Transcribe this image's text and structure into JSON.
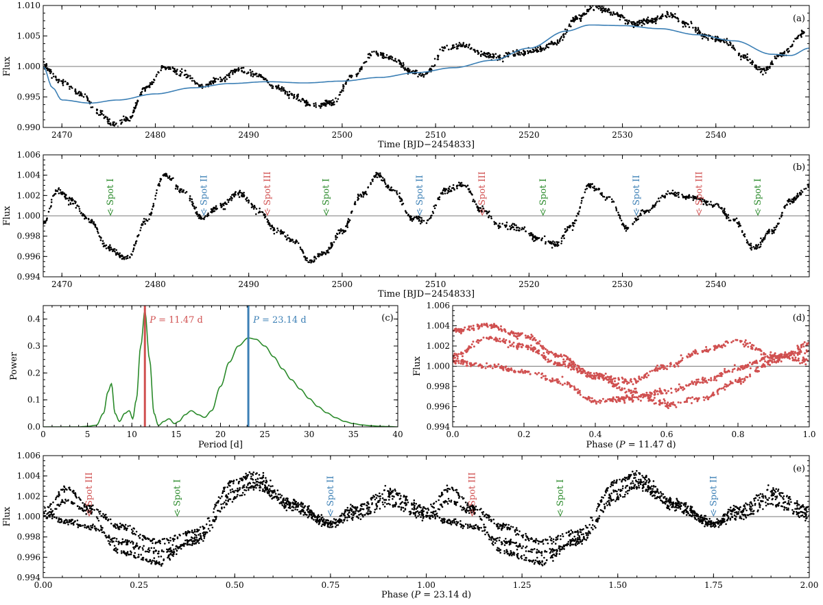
{
  "figure": {
    "description_panels": [
      "a",
      "b",
      "c",
      "d",
      "e"
    ]
  },
  "chart_data": [
    {
      "panel": "(a)",
      "type": "scatter",
      "xlabel": "Time [BJD−2454833]",
      "ylabel": "Flux",
      "xlim": [
        2468,
        2550
      ],
      "ylim": [
        0.99,
        1.01
      ],
      "xticks": [
        2470,
        2480,
        2490,
        2500,
        2510,
        2520,
        2530,
        2540
      ],
      "xtick_labels": [
        "2470",
        "2480",
        "2490",
        "2500",
        "2510",
        "2520",
        "2530",
        "2540"
      ],
      "yticks": [
        0.99,
        0.995,
        1.0,
        1.005,
        1.01
      ],
      "ytick_labels": [
        "0.990",
        "0.995",
        "1.000",
        "1.005",
        "1.010"
      ],
      "reference_line": 1.0,
      "series": [
        {
          "name": "data",
          "color": "#000000",
          "style": "dots",
          "x": [
            2468.0,
            2470.0,
            2472.0,
            2474.0,
            2475.5,
            2477.0,
            2479.0,
            2481.0,
            2483.0,
            2485.0,
            2487.0,
            2489.0,
            2491.0,
            2493.0,
            2495.0,
            2497.0,
            2499.0,
            2501.0,
            2503.5,
            2505.5,
            2507.5,
            2509.0,
            2511.0,
            2513.0,
            2515.0,
            2517.0,
            2519.0,
            2521.0,
            2523.0,
            2525.0,
            2527.0,
            2529.0,
            2531.0,
            2533.0,
            2535.0,
            2537.0,
            2539.0,
            2541.0,
            2543.0,
            2545.0,
            2547.0,
            2549.5
          ],
          "y": [
            1.0001,
            0.9975,
            0.9955,
            0.9925,
            0.9905,
            0.9912,
            0.9965,
            0.9999,
            0.9988,
            0.9968,
            0.9978,
            0.9995,
            0.9985,
            0.9965,
            0.995,
            0.9935,
            0.994,
            0.9982,
            1.0022,
            1.0012,
            0.999,
            0.9988,
            1.003,
            1.0035,
            1.002,
            1.0015,
            1.0022,
            1.0028,
            1.004,
            1.0078,
            1.0098,
            1.0088,
            1.007,
            1.0075,
            1.0085,
            1.0068,
            1.005,
            1.0042,
            1.0015,
            0.9993,
            1.002,
            1.0055
          ]
        },
        {
          "name": "model",
          "color": "#3b7fb5",
          "style": "line",
          "x": [
            2468.0,
            2469.0,
            2470.0,
            2473.0,
            2476.0,
            2480.0,
            2484.0,
            2488.0,
            2492.0,
            2496.0,
            2500.0,
            2504.0,
            2508.0,
            2512.0,
            2516.0,
            2520.0,
            2524.0,
            2526.5,
            2530.0,
            2534.0,
            2538.0,
            2542.0,
            2546.0,
            2548.0,
            2550.0
          ],
          "y": [
            1.0,
            0.9965,
            0.9945,
            0.994,
            0.9945,
            0.9955,
            0.9965,
            0.9972,
            0.9975,
            0.9973,
            0.9976,
            0.9982,
            0.999,
            0.9998,
            1.001,
            1.003,
            1.0058,
            1.0068,
            1.0067,
            1.0062,
            1.0052,
            1.0042,
            1.002,
            1.0018,
            1.003
          ]
        }
      ]
    },
    {
      "panel": "(b)",
      "type": "scatter",
      "xlabel": "Time [BJD−2454833]",
      "ylabel": "Flux",
      "xlim": [
        2468,
        2550
      ],
      "ylim": [
        0.994,
        1.006
      ],
      "xticks": [
        2470,
        2480,
        2490,
        2500,
        2510,
        2520,
        2530,
        2540
      ],
      "xtick_labels": [
        "2470",
        "2480",
        "2490",
        "2500",
        "2510",
        "2520",
        "2530",
        "2540"
      ],
      "yticks": [
        0.994,
        0.996,
        0.998,
        1.0,
        1.002,
        1.004,
        1.006
      ],
      "ytick_labels": [
        "0.994",
        "0.996",
        "0.998",
        "1.000",
        "1.002",
        "1.004",
        "1.006"
      ],
      "reference_line": 1.0,
      "series": [
        {
          "name": "detrended",
          "color": "#000000",
          "style": "dots",
          "x": [
            2468.0,
            2469.5,
            2471.0,
            2473.0,
            2475.0,
            2477.0,
            2479.0,
            2481.0,
            2483.0,
            2485.0,
            2487.0,
            2489.0,
            2491.0,
            2493.0,
            2495.0,
            2496.5,
            2498.0,
            2500.0,
            2502.0,
            2503.8,
            2505.5,
            2507.5,
            2509.0,
            2511.0,
            2513.0,
            2515.0,
            2517.0,
            2519.0,
            2521.0,
            2523.0,
            2524.5,
            2526.5,
            2528.5,
            2530.5,
            2532.5,
            2535.0,
            2537.5,
            2540.0,
            2542.0,
            2544.0,
            2546.0,
            2548.0,
            2550.0
          ],
          "y": [
            0.9993,
            1.0025,
            1.0015,
            0.9995,
            0.9968,
            0.9958,
            0.9995,
            1.004,
            1.0025,
            0.9998,
            1.001,
            1.0022,
            1.0005,
            0.9985,
            0.9975,
            0.9955,
            0.9963,
            0.9985,
            1.002,
            1.004,
            1.0025,
            0.9998,
            0.9995,
            1.0025,
            1.003,
            1.0005,
            0.999,
            0.9988,
            0.9978,
            0.9972,
            0.999,
            1.003,
            1.0018,
            0.9988,
            1.0005,
            1.0022,
            1.0018,
            1.001,
            0.9995,
            0.9968,
            0.9985,
            1.0015,
            1.0028
          ]
        }
      ],
      "annotations": [
        {
          "text": "Spot I",
          "x": 2475.2,
          "color": "#2a8a2a"
        },
        {
          "text": "Spot II",
          "x": 2485.2,
          "color": "#3b7fb5"
        },
        {
          "text": "Spot III",
          "x": 2492.0,
          "color": "#d05050"
        },
        {
          "text": "Spot I",
          "x": 2498.3,
          "color": "#2a8a2a"
        },
        {
          "text": "Spot II",
          "x": 2508.3,
          "color": "#3b7fb5"
        },
        {
          "text": "Spot III",
          "x": 2515.0,
          "color": "#d05050"
        },
        {
          "text": "Spot I",
          "x": 2521.5,
          "color": "#2a8a2a"
        },
        {
          "text": "Spot II",
          "x": 2531.5,
          "color": "#3b7fb5"
        },
        {
          "text": "Spot III",
          "x": 2538.2,
          "color": "#d05050"
        },
        {
          "text": "Spot I",
          "x": 2544.5,
          "color": "#2a8a2a"
        }
      ]
    },
    {
      "panel": "(c)",
      "type": "line",
      "xlabel": "Period [d]",
      "ylabel": "Power",
      "xlim": [
        0,
        40
      ],
      "ylim": [
        0,
        0.45
      ],
      "xticks": [
        0,
        5,
        10,
        15,
        20,
        25,
        30,
        35,
        40
      ],
      "xtick_labels": [
        "0",
        "5",
        "10",
        "15",
        "20",
        "25",
        "30",
        "35",
        "40"
      ],
      "yticks": [
        0.0,
        0.1,
        0.2,
        0.3,
        0.4
      ],
      "ytick_labels": [
        "0.0",
        "0.1",
        "0.2",
        "0.3",
        "0.4"
      ],
      "series": [
        {
          "name": "periodogram",
          "color": "#2a8a2a",
          "x": [
            0,
            4,
            5,
            6,
            6.8,
            7.3,
            7.7,
            8.1,
            8.6,
            9.2,
            9.7,
            10.1,
            10.5,
            11.0,
            11.47,
            12.0,
            12.5,
            13.0,
            13.6,
            14.2,
            14.8,
            15.3,
            16.0,
            16.7,
            17.5,
            18.2,
            19.0,
            20.0,
            21.0,
            22.0,
            23.14,
            24.0,
            25.0,
            26.0,
            27.0,
            28.0,
            29.0,
            30.0,
            31.0,
            32.0,
            33.0,
            34.0,
            35.0,
            36.0,
            37.0,
            38.0,
            39.0,
            40.0
          ],
          "y": [
            0,
            0,
            0.002,
            0.006,
            0.05,
            0.13,
            0.16,
            0.05,
            0.02,
            0.05,
            0.06,
            0.03,
            0.1,
            0.3,
            0.43,
            0.25,
            0.05,
            0.005,
            0.02,
            0.03,
            0.012,
            0.02,
            0.045,
            0.06,
            0.045,
            0.035,
            0.06,
            0.15,
            0.24,
            0.3,
            0.33,
            0.325,
            0.3,
            0.26,
            0.215,
            0.175,
            0.14,
            0.105,
            0.075,
            0.052,
            0.034,
            0.02,
            0.012,
            0.007,
            0.004,
            0.002,
            0.001,
            0.0
          ]
        }
      ],
      "markers": [
        {
          "label": "P = 11.47 d",
          "x": 11.47,
          "color": "#d05050"
        },
        {
          "label": "P = 23.14 d",
          "x": 23.14,
          "color": "#3b7fb5"
        }
      ]
    },
    {
      "panel": "(d)",
      "type": "scatter",
      "xlabel": "Phase (P = 11.47 d)",
      "ylabel": "Flux",
      "xlim": [
        0,
        1
      ],
      "ylim": [
        0.994,
        1.006
      ],
      "xticks": [
        0.0,
        0.2,
        0.4,
        0.6,
        0.8,
        1.0
      ],
      "xtick_labels": [
        "0.0",
        "0.2",
        "0.4",
        "0.6",
        "0.8",
        "1.0"
      ],
      "yticks": [
        0.994,
        0.996,
        0.998,
        1.0,
        1.002,
        1.004,
        1.006
      ],
      "ytick_labels": [
        "0.994",
        "0.996",
        "0.998",
        "1.000",
        "1.002",
        "1.004",
        "1.006"
      ],
      "reference_line": 1.0,
      "series": [
        {
          "name": "branch1",
          "color": "#d05050",
          "style": "dots",
          "x": [
            0.0,
            0.1,
            0.2,
            0.3,
            0.4,
            0.5,
            0.6,
            0.7,
            0.8,
            0.9,
            1.0
          ],
          "y": [
            1.0035,
            1.004,
            1.003,
            1.001,
            0.999,
            0.9975,
            0.9962,
            0.9968,
            0.9985,
            1.0005,
            1.0022
          ]
        },
        {
          "name": "branch2",
          "color": "#d05050",
          "style": "dots",
          "x": [
            0.0,
            0.1,
            0.2,
            0.3,
            0.4,
            0.5,
            0.6,
            0.7,
            0.8,
            0.9,
            1.0
          ],
          "y": [
            1.001,
            1.0028,
            1.002,
            1.0002,
            0.999,
            0.9985,
            1.0,
            1.0015,
            1.0025,
            1.001,
            1.0015
          ]
        },
        {
          "name": "branch3",
          "color": "#d05050",
          "style": "dots",
          "x": [
            0.0,
            0.1,
            0.2,
            0.3,
            0.4,
            0.5,
            0.6,
            0.7,
            0.8,
            0.9,
            1.0
          ],
          "y": [
            1.0005,
            1.0,
            0.9995,
            0.9985,
            0.9965,
            0.9968,
            0.9975,
            0.9985,
            0.9998,
            1.001,
            1.0005
          ]
        }
      ]
    },
    {
      "panel": "(e)",
      "type": "scatter",
      "xlabel": "Phase (P = 23.14 d)",
      "ylabel": "Flux",
      "xlim": [
        0,
        2
      ],
      "ylim": [
        0.994,
        1.006
      ],
      "xticks": [
        0.0,
        0.25,
        0.5,
        0.75,
        1.0,
        1.25,
        1.5,
        1.75,
        2.0
      ],
      "xtick_labels": [
        "0.00",
        "0.25",
        "0.50",
        "0.75",
        "1.00",
        "1.25",
        "1.50",
        "1.75",
        "2.00"
      ],
      "yticks": [
        0.994,
        0.996,
        0.998,
        1.0,
        1.002,
        1.004,
        1.006
      ],
      "ytick_labels": [
        "0.994",
        "0.996",
        "0.998",
        "1.000",
        "1.002",
        "1.004",
        "1.006"
      ],
      "reference_line": 1.0,
      "series": [
        {
          "name": "branchA",
          "color": "#000000",
          "style": "dots",
          "x": [
            0.0,
            0.06,
            0.12,
            0.2,
            0.3,
            0.4,
            0.5,
            0.55,
            0.65,
            0.75,
            0.82,
            0.9,
            1.0
          ],
          "y": [
            1.0008,
            1.0028,
            1.001,
            0.999,
            0.9975,
            0.9985,
            1.0035,
            1.0042,
            1.0015,
            0.9995,
            1.001,
            1.0025,
            1.0008
          ]
        },
        {
          "name": "branchB",
          "color": "#000000",
          "style": "dots",
          "x": [
            0.0,
            0.06,
            0.12,
            0.2,
            0.3,
            0.4,
            0.5,
            0.55,
            0.65,
            0.75,
            0.82,
            0.9,
            1.0
          ],
          "y": [
            1.0005,
            0.9995,
            0.999,
            0.9975,
            0.9965,
            0.9975,
            1.0025,
            1.0035,
            1.0012,
            0.9992,
            1.0005,
            1.0018,
            1.0005
          ]
        },
        {
          "name": "branchC",
          "color": "#000000",
          "style": "dots",
          "x": [
            0.0,
            0.06,
            0.12,
            0.2,
            0.3,
            0.4,
            0.5,
            0.55,
            0.65,
            0.75,
            0.82,
            0.9,
            1.0
          ],
          "y": [
            1.0,
            1.0015,
            1.0005,
            0.9965,
            0.9955,
            0.9978,
            1.0018,
            1.003,
            1.0008,
            0.9993,
            1.0,
            1.0012,
            1.0
          ]
        }
      ],
      "annotations": [
        {
          "text": "Spot III",
          "x": 0.12,
          "color": "#d05050"
        },
        {
          "text": "Spot I",
          "x": 0.35,
          "color": "#2a8a2a"
        },
        {
          "text": "Spot II",
          "x": 0.75,
          "color": "#3b7fb5"
        },
        {
          "text": "Spot III",
          "x": 1.12,
          "color": "#d05050"
        },
        {
          "text": "Spot I",
          "x": 1.35,
          "color": "#2a8a2a"
        },
        {
          "text": "Spot II",
          "x": 1.75,
          "color": "#3b7fb5"
        }
      ]
    }
  ]
}
